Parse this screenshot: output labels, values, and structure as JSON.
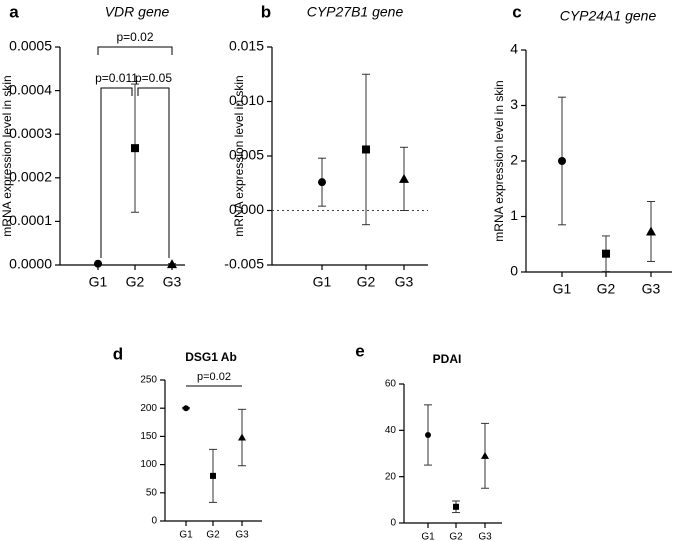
{
  "chart_data": [
    {
      "type": "errorbar",
      "panel": "a",
      "title": "VDR gene",
      "y_label": "mRNA expression level in skin",
      "categories": [
        "G1",
        "G2",
        "G3"
      ],
      "markers": [
        "circle",
        "square",
        "triangle"
      ],
      "values": [
        3e-06,
        0.000268,
        2e-06
      ],
      "errors": [
        1e-06,
        0.000147,
        1e-06
      ],
      "ylim": [
        0,
        0.0005
      ],
      "yticks": [
        {
          "value": 0,
          "label": "0.0000"
        },
        {
          "value": 0.0001,
          "label": "0.0001"
        },
        {
          "value": 0.0002,
          "label": "0.0002"
        },
        {
          "value": 0.0003,
          "label": "0.0003"
        },
        {
          "value": 0.0004,
          "label": "0.0004"
        },
        {
          "value": 0.0005,
          "label": "0.0005"
        }
      ],
      "annotations": [
        {
          "text": "p=0.02",
          "groups": [
            0,
            2
          ]
        },
        {
          "text": "p=0.011",
          "groups": [
            0,
            1
          ]
        },
        {
          "text": "p=0.05",
          "groups": [
            1,
            2
          ]
        }
      ]
    },
    {
      "type": "errorbar",
      "panel": "b",
      "title": "CYP27B1 gene",
      "y_label": "mRNA expression level in skin",
      "categories": [
        "G1",
        "G2",
        "G3"
      ],
      "markers": [
        "circle",
        "square",
        "triangle"
      ],
      "values": [
        0.0026,
        0.0056,
        0.0029
      ],
      "errors": [
        0.0022,
        0.0069,
        0.0029
      ],
      "ylim": [
        -0.005,
        0.015
      ],
      "zero_line": true,
      "yticks": [
        -0.005,
        {
          "value": 0,
          "label": "0.000"
        },
        0.005,
        {
          "value": 0.01,
          "label": "0.010"
        },
        {
          "value": 0.015,
          "label": "0.015"
        }
      ]
    },
    {
      "type": "errorbar",
      "panel": "c",
      "title": "CYP24A1 gene",
      "y_label": "mRNA expression level in skin",
      "categories": [
        "G1",
        "G2",
        "G3"
      ],
      "markers": [
        "circle",
        "square",
        "triangle"
      ],
      "values": [
        2.0,
        0.33,
        0.73
      ],
      "errors": [
        1.15,
        0.32,
        0.54
      ],
      "ylim": [
        0,
        4
      ],
      "yticks": [
        0,
        1,
        2,
        3,
        4
      ]
    },
    {
      "type": "errorbar",
      "panel": "d",
      "title": "DSG1 Ab",
      "categories": [
        "G1",
        "G2",
        "G3"
      ],
      "markers": [
        "circle",
        "square",
        "triangle"
      ],
      "values": [
        200,
        80,
        148
      ],
      "errors": [
        1,
        47,
        50
      ],
      "ylim": [
        0,
        250
      ],
      "yticks": [
        0,
        50,
        100,
        150,
        200,
        250
      ],
      "annotations": [
        {
          "text": "p=0.02",
          "groups": [
            0,
            2
          ]
        }
      ]
    },
    {
      "type": "errorbar",
      "panel": "e",
      "title": "PDAI",
      "categories": [
        "G1",
        "G2",
        "G3"
      ],
      "markers": [
        "circle",
        "square",
        "triangle"
      ],
      "values": [
        38,
        7,
        29
      ],
      "errors": [
        13,
        2.5,
        14
      ],
      "ylim": [
        0,
        60
      ],
      "yticks": [
        0,
        20,
        40,
        60
      ]
    }
  ]
}
